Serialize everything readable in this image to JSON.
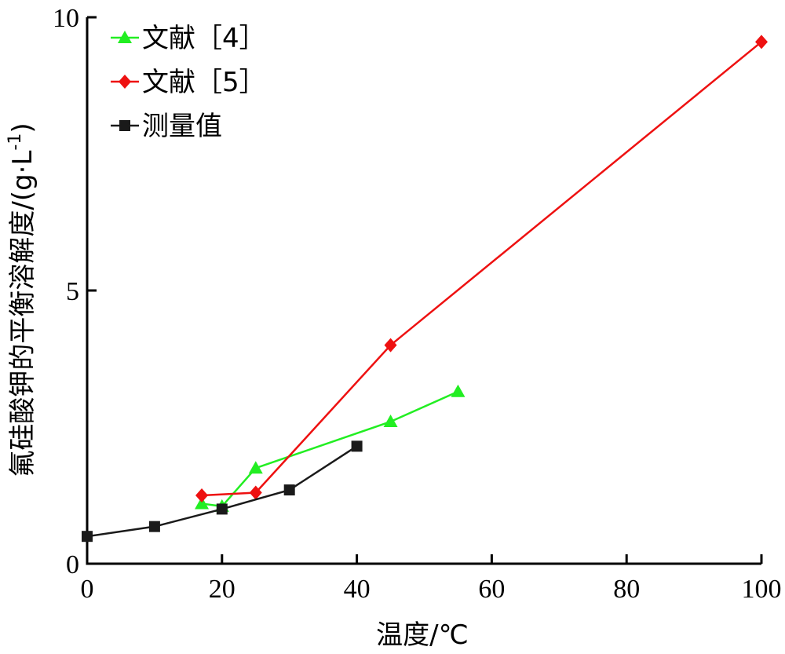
{
  "chart_data": {
    "type": "line",
    "title": "",
    "xlabel": "温度/℃",
    "ylabel_main": "氟硅酸钾的平衡溶解度/(g·L",
    "ylabel_sup": "-1",
    "ylabel_close": ")",
    "xlim": [
      0,
      100
    ],
    "ylim": [
      0,
      10
    ],
    "xticks": [
      0,
      20,
      40,
      60,
      80,
      100
    ],
    "yticks": [
      0,
      5,
      10
    ],
    "grid": false,
    "legend_position": "top-left",
    "series": [
      {
        "name": "文献［4］",
        "color": "#22ee22",
        "marker": "triangle",
        "x": [
          17,
          20,
          25,
          45,
          55
        ],
        "y": [
          1.1,
          1.05,
          1.75,
          2.6,
          3.15
        ]
      },
      {
        "name": "文献［5］",
        "color": "#ee1111",
        "marker": "diamond",
        "x": [
          17,
          25,
          45,
          100
        ],
        "y": [
          1.25,
          1.3,
          4.0,
          9.55
        ]
      },
      {
        "name": "测量值",
        "color": "#1a1a1a",
        "marker": "square",
        "x": [
          0,
          10,
          20,
          30,
          40
        ],
        "y": [
          0.5,
          0.68,
          1.0,
          1.35,
          2.15
        ]
      }
    ]
  }
}
